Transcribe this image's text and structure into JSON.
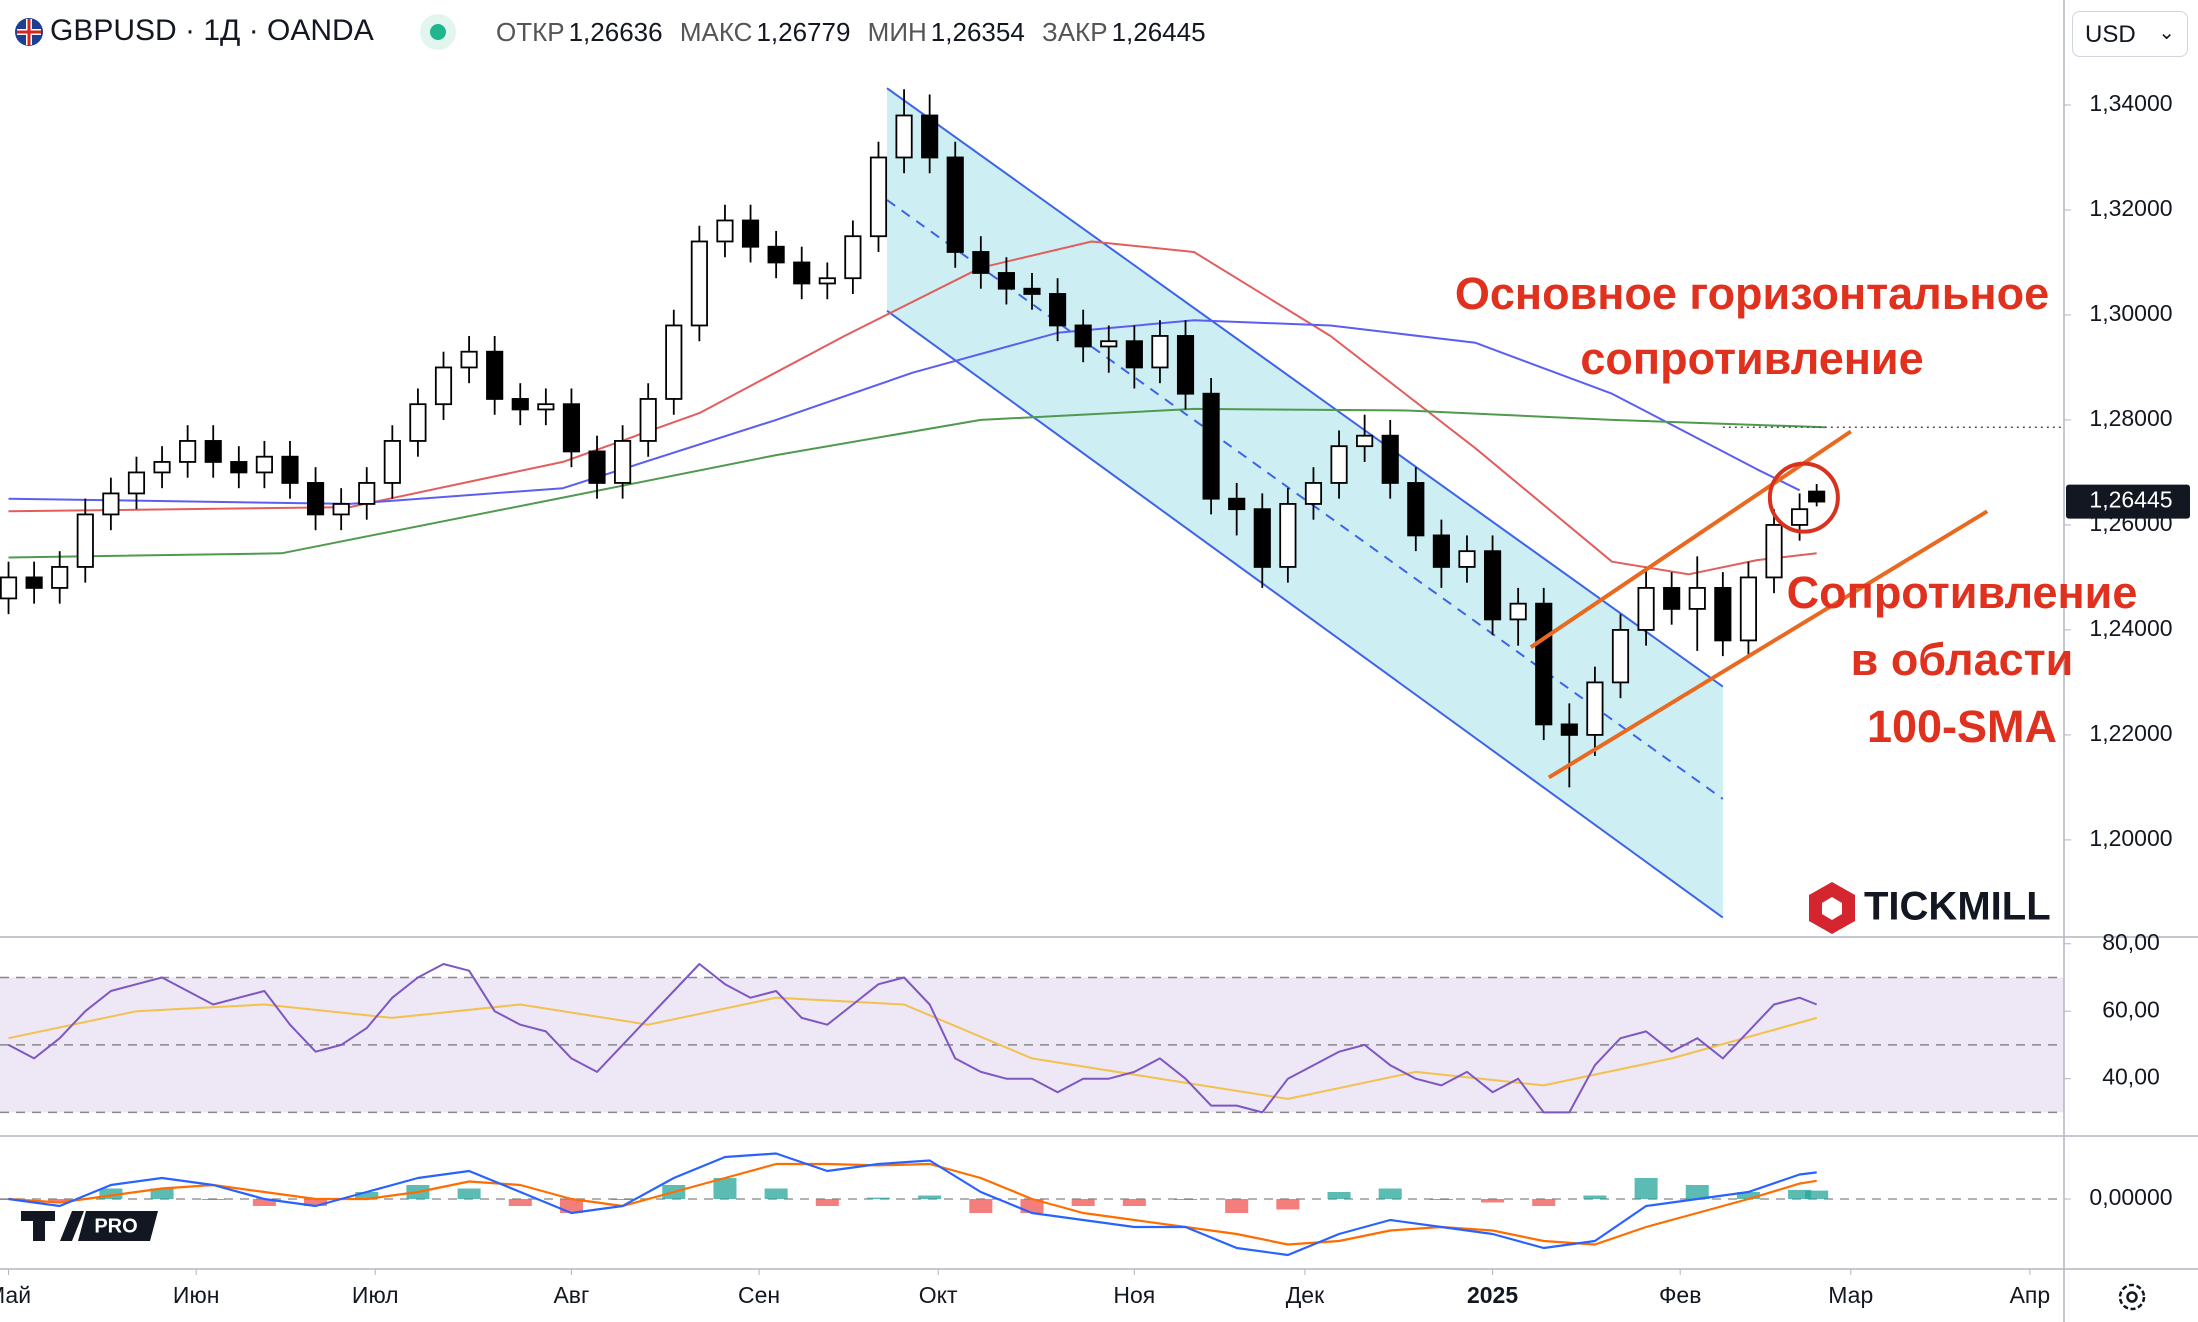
{
  "header": {
    "symbol": "GBPUSD · 1Д · OANDA",
    "ohlc": [
      {
        "label": "ОТКР",
        "value": "1,26636"
      },
      {
        "label": "МАКС",
        "value": "1,26779"
      },
      {
        "label": "МИН",
        "value": "1,26354"
      },
      {
        "label": "ЗАКР",
        "value": "1,26445"
      }
    ],
    "currency": "USD"
  },
  "branding": {
    "broker": "TICKMILL",
    "badge": "PRO"
  },
  "chart_data": [
    {
      "type": "candlestick",
      "x": [
        0,
        3,
        6,
        9,
        12,
        15,
        18,
        21,
        24,
        27,
        30,
        33,
        36,
        39,
        42,
        45,
        48,
        51,
        54,
        57,
        60,
        63,
        66,
        69,
        72,
        75,
        78,
        81,
        84,
        87,
        90,
        93,
        96,
        99,
        102,
        105,
        108,
        111,
        114,
        117,
        120,
        123,
        126,
        129,
        132,
        135,
        138,
        141,
        144,
        147,
        150,
        153,
        156,
        159,
        162,
        165,
        168,
        171,
        174,
        177,
        180,
        183,
        186,
        189,
        192,
        195,
        198,
        201,
        204,
        207,
        210,
        212
      ],
      "open": [
        1.246,
        1.25,
        1.248,
        1.252,
        1.262,
        1.266,
        1.27,
        1.272,
        1.276,
        1.272,
        1.27,
        1.273,
        1.268,
        1.262,
        1.264,
        1.268,
        1.276,
        1.283,
        1.29,
        1.293,
        1.284,
        1.282,
        1.283,
        1.274,
        1.268,
        1.276,
        1.284,
        1.298,
        1.314,
        1.318,
        1.313,
        1.31,
        1.306,
        1.307,
        1.315,
        1.33,
        1.338,
        1.33,
        1.312,
        1.308,
        1.305,
        1.304,
        1.298,
        1.294,
        1.295,
        1.29,
        1.296,
        1.285,
        1.265,
        1.263,
        1.252,
        1.264,
        1.268,
        1.275,
        1.277,
        1.268,
        1.258,
        1.252,
        1.255,
        1.242,
        1.245,
        1.222,
        1.22,
        1.23,
        1.24,
        1.248,
        1.244,
        1.248,
        1.238,
        1.25,
        1.26,
        1.26636
      ],
      "high": [
        1.253,
        1.253,
        1.255,
        1.265,
        1.269,
        1.273,
        1.275,
        1.279,
        1.279,
        1.275,
        1.276,
        1.276,
        1.271,
        1.267,
        1.271,
        1.279,
        1.286,
        1.293,
        1.296,
        1.296,
        1.287,
        1.286,
        1.286,
        1.277,
        1.279,
        1.287,
        1.301,
        1.317,
        1.321,
        1.321,
        1.316,
        1.313,
        1.31,
        1.318,
        1.333,
        1.343,
        1.342,
        1.333,
        1.315,
        1.311,
        1.308,
        1.307,
        1.301,
        1.298,
        1.298,
        1.299,
        1.299,
        1.288,
        1.268,
        1.266,
        1.267,
        1.271,
        1.278,
        1.281,
        1.28,
        1.271,
        1.261,
        1.258,
        1.258,
        1.248,
        1.248,
        1.226,
        1.233,
        1.243,
        1.252,
        1.251,
        1.254,
        1.251,
        1.253,
        1.263,
        1.266,
        1.26779
      ],
      "low": [
        1.243,
        1.245,
        1.245,
        1.249,
        1.259,
        1.263,
        1.267,
        1.269,
        1.269,
        1.267,
        1.267,
        1.265,
        1.259,
        1.259,
        1.261,
        1.265,
        1.273,
        1.28,
        1.287,
        1.281,
        1.279,
        1.279,
        1.271,
        1.265,
        1.265,
        1.273,
        1.281,
        1.295,
        1.311,
        1.31,
        1.307,
        1.303,
        1.303,
        1.304,
        1.312,
        1.327,
        1.327,
        1.309,
        1.305,
        1.302,
        1.301,
        1.295,
        1.291,
        1.289,
        1.286,
        1.287,
        1.282,
        1.262,
        1.258,
        1.248,
        1.249,
        1.261,
        1.265,
        1.272,
        1.265,
        1.255,
        1.248,
        1.249,
        1.239,
        1.237,
        1.219,
        1.21,
        1.216,
        1.227,
        1.237,
        1.241,
        1.236,
        1.235,
        1.235,
        1.247,
        1.257,
        1.26354
      ],
      "close": [
        1.25,
        1.248,
        1.252,
        1.262,
        1.266,
        1.27,
        1.272,
        1.276,
        1.272,
        1.27,
        1.273,
        1.268,
        1.262,
        1.264,
        1.268,
        1.276,
        1.283,
        1.29,
        1.293,
        1.284,
        1.282,
        1.283,
        1.274,
        1.268,
        1.276,
        1.284,
        1.298,
        1.314,
        1.318,
        1.313,
        1.31,
        1.306,
        1.307,
        1.315,
        1.33,
        1.338,
        1.33,
        1.312,
        1.308,
        1.305,
        1.304,
        1.298,
        1.294,
        1.295,
        1.29,
        1.296,
        1.285,
        1.265,
        1.263,
        1.252,
        1.264,
        1.268,
        1.275,
        1.277,
        1.268,
        1.258,
        1.252,
        1.255,
        1.242,
        1.245,
        1.222,
        1.22,
        1.23,
        1.24,
        1.248,
        1.244,
        1.248,
        1.238,
        1.25,
        1.26,
        1.263,
        1.26445
      ],
      "up_color": "#ffffff",
      "down_color": "#000000",
      "xlim": [
        -1,
        241
      ],
      "xticks": [
        {
          "value": 0,
          "label": "Май"
        },
        {
          "value": 22,
          "label": "Июн"
        },
        {
          "value": 43,
          "label": "Июл"
        },
        {
          "value": 66,
          "label": "Авг"
        },
        {
          "value": 88,
          "label": "Сен"
        },
        {
          "value": 109,
          "label": "Окт"
        },
        {
          "value": 132,
          "label": "Ноя"
        },
        {
          "value": 152,
          "label": "Дек"
        },
        {
          "value": 174,
          "label": "2025"
        },
        {
          "value": 196,
          "label": "Фев"
        },
        {
          "value": 216,
          "label": "Мар"
        },
        {
          "value": 237,
          "label": "Апр"
        }
      ],
      "ylim": [
        1.1815,
        1.36
      ],
      "yticks": [
        {
          "value": 1.34,
          "label": "1,34000"
        },
        {
          "value": 1.32,
          "label": "1,32000"
        },
        {
          "value": 1.3,
          "label": "1,30000"
        },
        {
          "value": 1.28,
          "label": "1,28000"
        },
        {
          "value": 1.26,
          "label": "1,26000"
        },
        {
          "value": 1.24,
          "label": "1,24000"
        },
        {
          "value": 1.22,
          "label": "1,22000"
        },
        {
          "value": 1.2,
          "label": "1,20000"
        }
      ],
      "moving_averages": [
        {
          "color": "#e35d5d",
          "x": [
            0,
            40,
            65,
            81,
            98,
            114,
            127,
            139,
            155,
            172,
            188,
            197,
            205,
            212
          ],
          "values": [
            1.2626,
            1.2634,
            1.272,
            1.2813,
            1.296,
            1.309,
            1.314,
            1.312,
            1.296,
            1.2746,
            1.253,
            1.2506,
            1.2533,
            1.2546
          ]
        },
        {
          "color": "#5b5ef0",
          "x": [
            0,
            40,
            65,
            90,
            106,
            123,
            139,
            155,
            172,
            188,
            205,
            210
          ],
          "values": [
            1.265,
            1.264,
            1.267,
            1.28,
            1.289,
            1.2966,
            1.299,
            1.298,
            1.2947,
            1.285,
            1.2706,
            1.2666
          ]
        },
        {
          "color": "#4f9a4f",
          "x": [
            0,
            32,
            65,
            90,
            114,
            139,
            164,
            188,
            213
          ],
          "values": [
            1.2538,
            1.2546,
            1.2652,
            1.2733,
            1.28,
            1.2821,
            1.2818,
            1.28,
            1.2786
          ]
        }
      ],
      "channel": {
        "x": [
          103,
          201
        ],
        "upper": [
          1.3432,
          1.2292
        ],
        "middle": [
          1.3219,
          1.2078
        ],
        "lower": [
          1.3008,
          1.1852
        ],
        "color": "#3d63e8",
        "fill": "#cdeff3"
      },
      "level": {
        "x": 201,
        "value": 1.2786
      },
      "trend_lines": [
        {
          "x": [
            178.5,
            216
          ],
          "values": [
            1.2367,
            1.2778
          ]
        },
        {
          "x": [
            180.6,
            232
          ],
          "values": [
            1.2119,
            1.2626
          ]
        }
      ],
      "trend_color": "#e8691f",
      "highlight": {
        "x": 210.5,
        "value": 1.2652,
        "color": "#d8321f"
      },
      "annotations": [
        {
          "lines": [
            "Основное горизонтальное",
            "сопротивление"
          ]
        },
        {
          "lines": [
            "Сопротивление",
            "в области",
            "100-SMA"
          ]
        }
      ],
      "annotation_color": "#e0301e",
      "last_price": {
        "value": 1.26445,
        "label": "1,26445"
      }
    },
    {
      "type": "line",
      "x": [
        0,
        3,
        6,
        9,
        12,
        15,
        18,
        21,
        24,
        27,
        30,
        33,
        36,
        39,
        42,
        45,
        48,
        51,
        54,
        57,
        60,
        63,
        66,
        69,
        72,
        75,
        78,
        81,
        84,
        87,
        90,
        93,
        96,
        99,
        102,
        105,
        108,
        111,
        114,
        117,
        120,
        123,
        126,
        129,
        132,
        135,
        138,
        141,
        144,
        147,
        150,
        153,
        156,
        159,
        162,
        165,
        168,
        171,
        174,
        177,
        180,
        183,
        186,
        189,
        192,
        195,
        198,
        201,
        204,
        207,
        210,
        212
      ],
      "values": [
        50,
        46,
        52,
        60,
        66,
        68,
        70,
        66,
        62,
        64,
        66,
        56,
        48,
        50,
        55,
        64,
        70,
        74,
        72,
        60,
        56,
        54,
        46,
        42,
        50,
        58,
        66,
        74,
        68,
        64,
        66,
        58,
        56,
        62,
        68,
        70,
        62,
        46,
        42,
        40,
        40,
        36,
        40,
        40,
        42,
        46,
        40,
        32,
        32,
        30,
        40,
        44,
        48,
        50,
        44,
        40,
        38,
        42,
        36,
        40,
        30,
        30,
        44,
        52,
        54,
        48,
        52,
        46,
        54,
        62,
        64,
        62
      ],
      "color": "#7e57c2",
      "ma": {
        "x": [
          0,
          15,
          30,
          45,
          60,
          75,
          90,
          105,
          120,
          135,
          150,
          165,
          180,
          195,
          212
        ],
        "values": [
          52,
          60,
          62,
          58,
          62,
          56,
          64,
          62,
          46,
          40,
          34,
          42,
          38,
          46,
          58
        ],
        "color": "#f2c14e"
      },
      "band": [
        30,
        70
      ],
      "midline": 50,
      "band_color": "#ede7f6",
      "ylim": [
        23,
        82
      ],
      "yticks": [
        {
          "value": 80,
          "label": "80,00"
        },
        {
          "value": 60,
          "label": "60,00"
        },
        {
          "value": 40,
          "label": "40,00"
        }
      ]
    },
    {
      "type": "macd",
      "x": [
        0,
        6,
        12,
        18,
        24,
        30,
        36,
        42,
        48,
        54,
        60,
        66,
        72,
        78,
        84,
        90,
        96,
        102,
        108,
        114,
        120,
        126,
        132,
        138,
        144,
        150,
        156,
        162,
        168,
        174,
        180,
        186,
        192,
        198,
        204,
        210,
        212
      ],
      "macd": [
        0,
        -0.001,
        0.002,
        0.003,
        0.002,
        0,
        -0.001,
        0.001,
        0.003,
        0.004,
        0.001,
        -0.002,
        -0.001,
        0.003,
        0.006,
        0.0065,
        0.004,
        0.005,
        0.0055,
        0.001,
        -0.002,
        -0.003,
        -0.004,
        -0.004,
        -0.007,
        -0.008,
        -0.005,
        -0.003,
        -0.004,
        -0.005,
        -0.007,
        -0.006,
        -0.001,
        0,
        0.001,
        0.0035,
        0.0038
      ],
      "signal": [
        0,
        -0.0005,
        0.0005,
        0.0015,
        0.002,
        0.001,
        0,
        0,
        0.001,
        0.0025,
        0.002,
        0,
        -0.001,
        0.001,
        0.003,
        0.005,
        0.005,
        0.0048,
        0.005,
        0.003,
        0,
        -0.002,
        -0.003,
        -0.004,
        -0.005,
        -0.0065,
        -0.006,
        -0.0045,
        -0.004,
        -0.0045,
        -0.006,
        -0.0065,
        -0.004,
        -0.002,
        0,
        0.0022,
        0.0026
      ],
      "histogram": [
        0,
        -0.0005,
        0.0015,
        0.0015,
        0,
        -0.001,
        -0.001,
        0.001,
        0.002,
        0.0015,
        -0.001,
        -0.002,
        0,
        0.002,
        0.003,
        0.0015,
        -0.001,
        0.0002,
        0.0005,
        -0.002,
        -0.002,
        -0.001,
        -0.001,
        0,
        -0.002,
        -0.0015,
        0.001,
        0.0015,
        0,
        -0.0005,
        -0.001,
        0.0005,
        0.003,
        0.002,
        0.001,
        0.0013,
        0.0012
      ],
      "macd_color": "#2962ff",
      "signal_color": "#ff6d00",
      "up_color": "#26a69a",
      "down_color": "#ef5350",
      "ylim": [
        -0.01,
        0.009
      ],
      "yticks": [
        {
          "value": 0,
          "label": "0,00000"
        }
      ]
    }
  ]
}
